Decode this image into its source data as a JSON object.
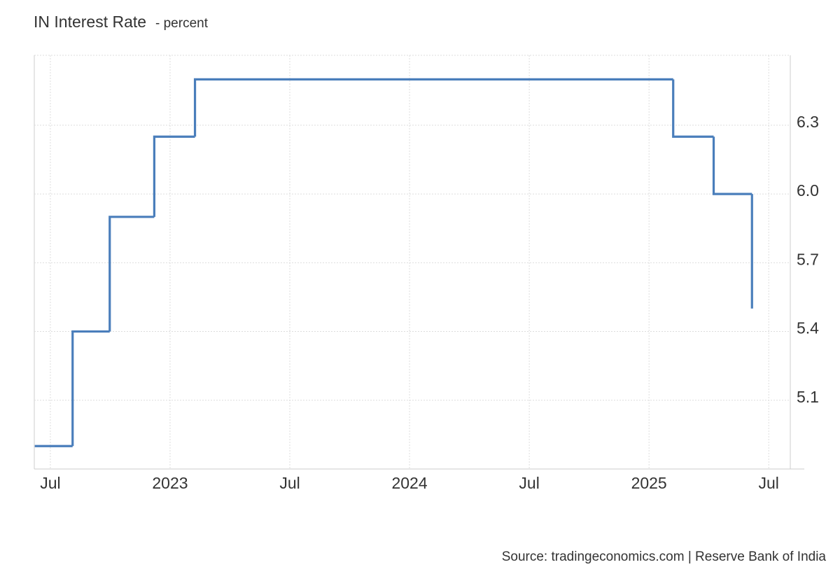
{
  "chart_data": {
    "type": "step-line",
    "title": "IN Interest Rate",
    "subtitle": "- percent",
    "source": "Source: tradingeconomics.com | Reserve Bank of India",
    "x": [
      2022.435,
      2022.593,
      2022.748,
      2022.934,
      2023.104,
      2025.101,
      2025.27,
      2025.43
    ],
    "series": [
      {
        "name": "Interest Rate",
        "color": "#4a7ebb",
        "values": [
          4.9,
          5.4,
          5.9,
          6.25,
          6.5,
          6.25,
          6.0,
          5.5
        ]
      }
    ],
    "xlim": [
      2022.433,
      2025.59
    ],
    "xticks": [
      {
        "value": 2022.5,
        "label": "Jul"
      },
      {
        "value": 2023,
        "label": "2023"
      },
      {
        "value": 2023.5,
        "label": "Jul"
      },
      {
        "value": 2024,
        "label": "2024"
      },
      {
        "value": 2024.5,
        "label": "Jul"
      },
      {
        "value": 2025,
        "label": "2025"
      },
      {
        "value": 2025.5,
        "label": "Jul"
      }
    ],
    "ylim": [
      4.8,
      6.605
    ],
    "yticks": [
      5.1,
      5.4,
      5.7,
      {
        "value": 6,
        "label": "6.0"
      },
      6.3
    ],
    "grid": true
  }
}
